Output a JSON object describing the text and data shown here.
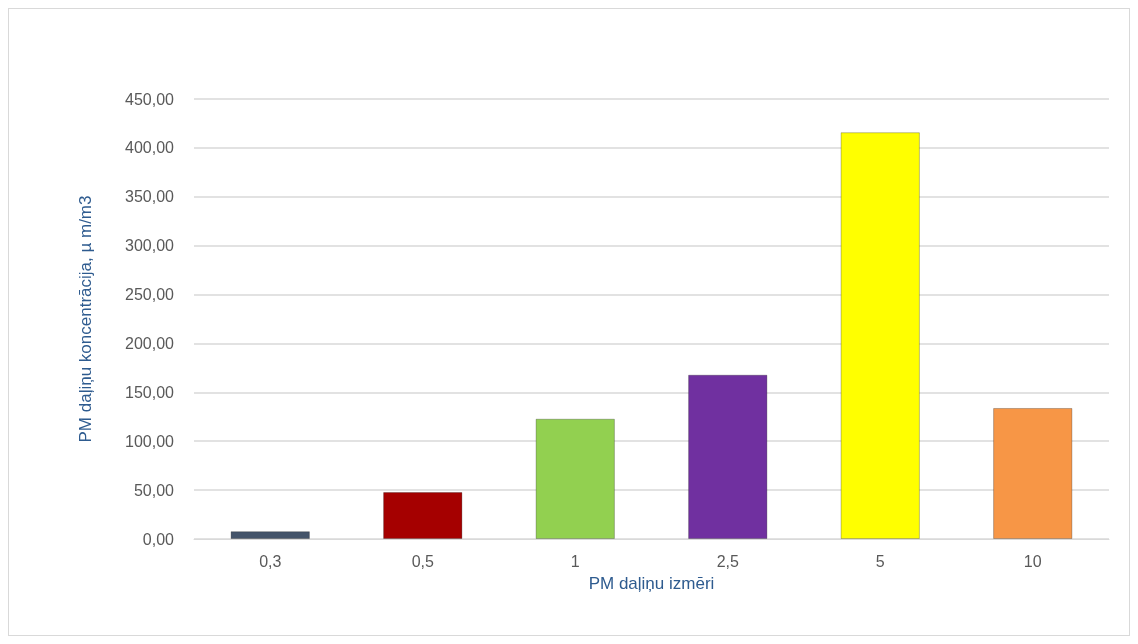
{
  "chart_data": {
    "type": "bar",
    "xlabel": "PM daļiņu izmēri",
    "ylabel": "PM daļiņu koncentrācija, µ m/m3",
    "categories": [
      "0,3",
      "0,5",
      "1",
      "2,5",
      "5",
      "10"
    ],
    "values": [
      8,
      48,
      123,
      168,
      416,
      134
    ],
    "colors": [
      "#44546a",
      "#a50000",
      "#92d050",
      "#7030a0",
      "#ffff00",
      "#f79646"
    ],
    "ylim": [
      0,
      450
    ],
    "yticks": [
      {
        "value": 0,
        "label": "0,00"
      },
      {
        "value": 50,
        "label": "50,00"
      },
      {
        "value": 100,
        "label": "100,00"
      },
      {
        "value": 150,
        "label": "150,00"
      },
      {
        "value": 200,
        "label": "200,00"
      },
      {
        "value": 250,
        "label": "250,00"
      },
      {
        "value": 300,
        "label": "300,00"
      },
      {
        "value": 350,
        "label": "350,00"
      },
      {
        "value": 400,
        "label": "400,00"
      },
      {
        "value": 450,
        "label": "450,00"
      }
    ],
    "grid": "y"
  }
}
